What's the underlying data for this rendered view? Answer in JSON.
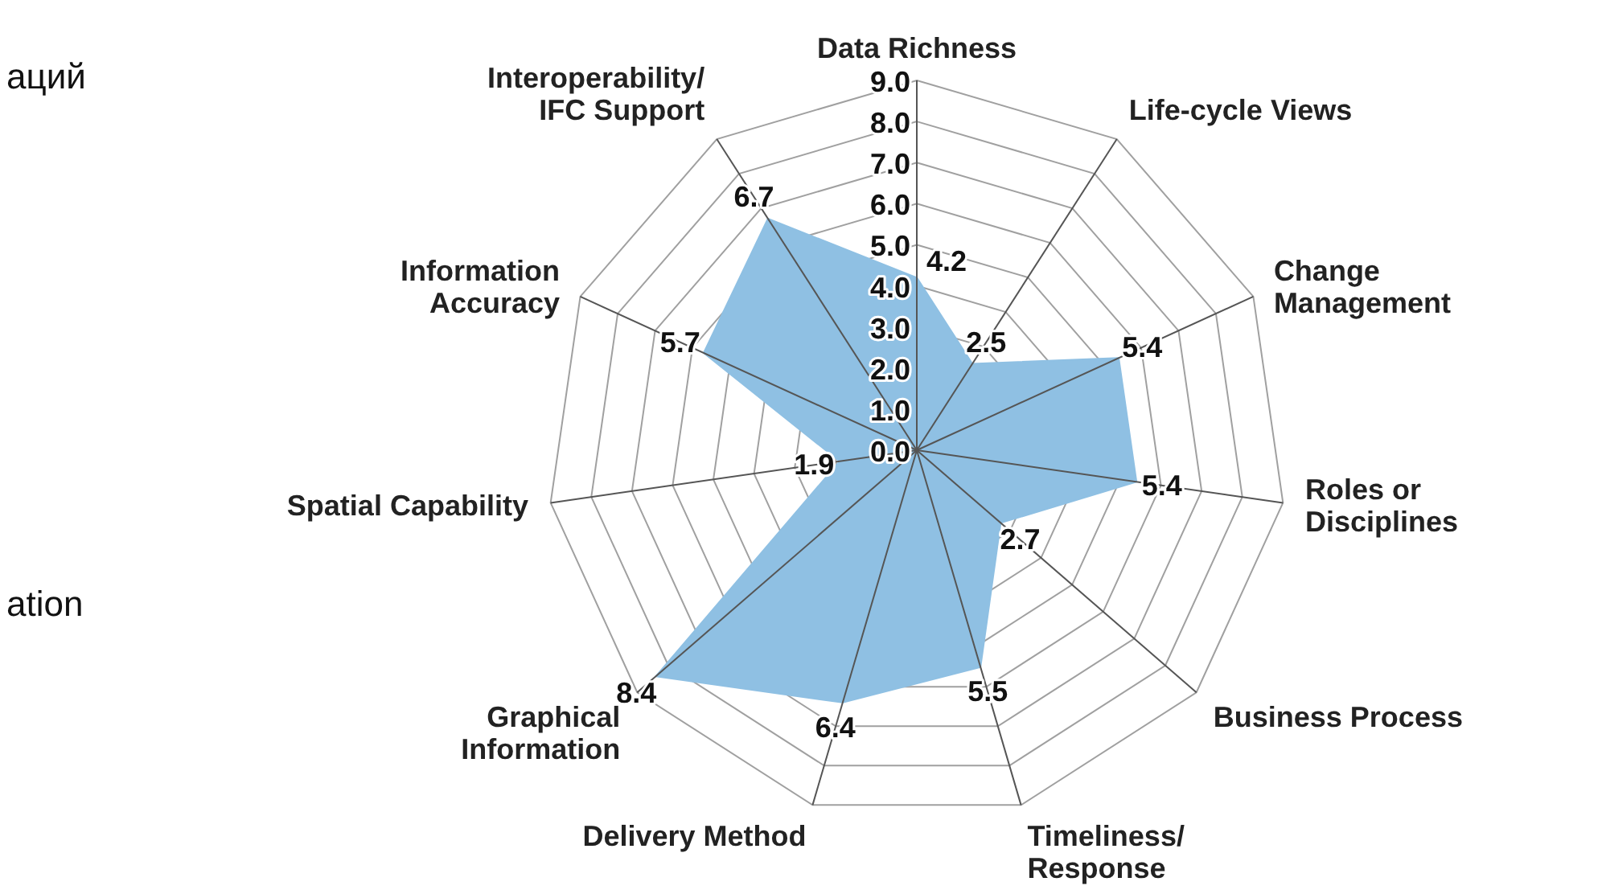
{
  "chart_data": {
    "type": "radar",
    "categories": [
      "Data Richness",
      "Life-cycle Views",
      "Change\nManagement",
      "Roles or\nDisciplines",
      "Business Process",
      "Timeliness/\nResponse",
      "Delivery Method",
      "Graphical\nInformation",
      "Spatial Capability",
      "Information\nAccuracy",
      "Interoperability/\nIFC Support"
    ],
    "series": [
      {
        "color": "#8fc0e3",
        "values": [
          4.2,
          2.5,
          5.4,
          5.4,
          2.7,
          5.5,
          6.4,
          8.4,
          1.9,
          5.7,
          6.7
        ]
      }
    ],
    "ylim": [
      0,
      9
    ],
    "yticks": [
      {
        "value": 0,
        "label": "0.0"
      },
      {
        "value": 1,
        "label": "1.0"
      },
      {
        "value": 2,
        "label": "2.0"
      },
      {
        "value": 3,
        "label": "3.0"
      },
      {
        "value": 4,
        "label": "4.0"
      },
      {
        "value": 5,
        "label": "5.0"
      },
      {
        "value": 6,
        "label": "6.0"
      },
      {
        "value": 7,
        "label": "7.0"
      },
      {
        "value": 8,
        "label": "8.0"
      },
      {
        "value": 9,
        "label": "9.0"
      }
    ],
    "grid": true,
    "data_labels": true,
    "annotations": [
      "аций",
      "ation"
    ]
  }
}
